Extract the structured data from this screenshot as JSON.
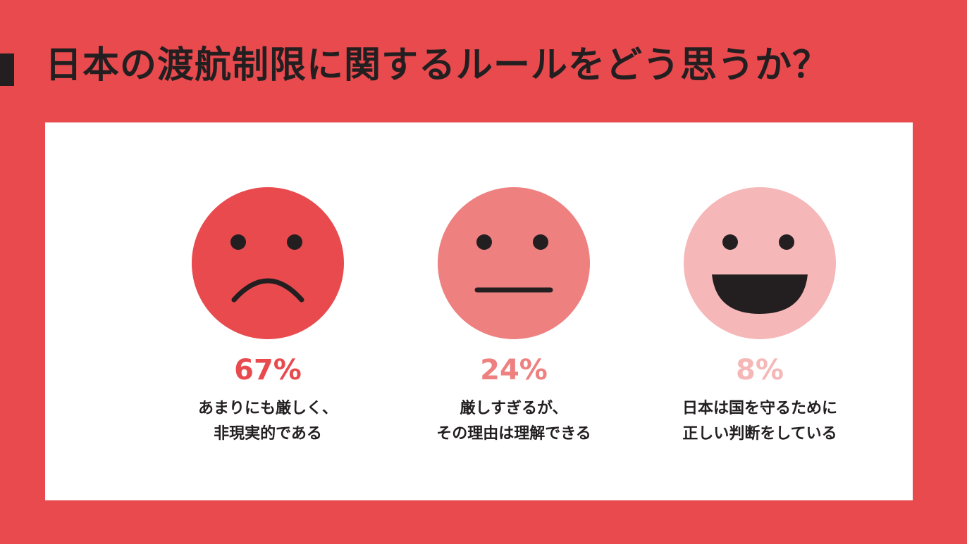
{
  "title": "日本の渡航制限に関するルールをどう思うか？",
  "colors": {
    "background": "#e84a4e",
    "panel": "#ffffff",
    "text": "#231f20"
  },
  "chart_data": {
    "type": "pictograph",
    "unit": "%",
    "items": [
      {
        "value": 67,
        "value_label": "67%",
        "label_lines": [
          "あまりにも厳しく、",
          "非現実的である"
        ],
        "face": "sad-face-icon",
        "color": "#e84a4e"
      },
      {
        "value": 24,
        "value_label": "24%",
        "label_lines": [
          "厳しすぎるが、",
          "その理由は理解できる"
        ],
        "face": "neutral-face-icon",
        "color": "#ee8080"
      },
      {
        "value": 8,
        "value_label": "8%",
        "label_lines": [
          "日本は国を守るために",
          "正しい判断をしている"
        ],
        "face": "happy-face-icon",
        "color": "#f5b7b7"
      }
    ]
  }
}
